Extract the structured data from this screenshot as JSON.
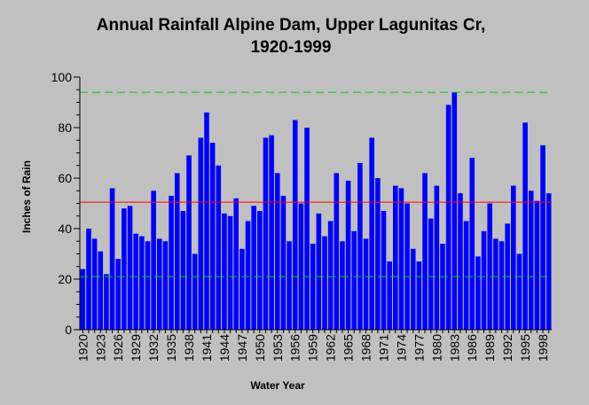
{
  "chart_data": {
    "type": "bar",
    "title_line1": "Annual Rainfall Alpine Dam, Upper Lagunitas Cr,",
    "title_line2": "1920-1999",
    "xlabel": "Water Year",
    "ylabel": "Inches of Rain",
    "ylim": [
      0,
      100
    ],
    "yticks": [
      "0",
      "20",
      "40",
      "60",
      "80",
      "100"
    ],
    "years": [
      1920,
      1921,
      1922,
      1923,
      1924,
      1925,
      1926,
      1927,
      1928,
      1929,
      1930,
      1931,
      1932,
      1933,
      1934,
      1935,
      1936,
      1937,
      1938,
      1939,
      1940,
      1941,
      1942,
      1943,
      1944,
      1945,
      1946,
      1947,
      1948,
      1949,
      1950,
      1951,
      1952,
      1953,
      1954,
      1955,
      1956,
      1957,
      1958,
      1959,
      1960,
      1961,
      1962,
      1963,
      1964,
      1965,
      1966,
      1967,
      1968,
      1969,
      1970,
      1971,
      1972,
      1973,
      1974,
      1975,
      1976,
      1977,
      1978,
      1979,
      1980,
      1981,
      1982,
      1983,
      1984,
      1985,
      1986,
      1987,
      1988,
      1989,
      1990,
      1991,
      1992,
      1993,
      1994,
      1995,
      1996,
      1997,
      1998,
      1999
    ],
    "xtick_labels": [
      "1920",
      "1923",
      "1926",
      "1929",
      "1932",
      "1935",
      "1938",
      "1941",
      "1944",
      "1947",
      "1950",
      "1953",
      "1956",
      "1959",
      "1962",
      "1965",
      "1968",
      "1971",
      "1974",
      "1977",
      "1980",
      "1983",
      "1986",
      "1989",
      "1992",
      "1995",
      "1998"
    ],
    "values": [
      24,
      40,
      36,
      31,
      22,
      56,
      28,
      48,
      49,
      38,
      37,
      35,
      55,
      36,
      35,
      53,
      62,
      47,
      69,
      30,
      76,
      86,
      74,
      65,
      46,
      45,
      52,
      32,
      43,
      49,
      47,
      76,
      77,
      62,
      53,
      35,
      83,
      50,
      80,
      34,
      46,
      37,
      43,
      62,
      35,
      59,
      39,
      66,
      36,
      76,
      60,
      47,
      27,
      57,
      56,
      50,
      32,
      27,
      62,
      44,
      57,
      34,
      89,
      94,
      54,
      43,
      68,
      29,
      39,
      50,
      36,
      35,
      42,
      57,
      30,
      82,
      55,
      51,
      73,
      54
    ],
    "reference_lines": [
      {
        "value": 94,
        "color": "#00cc00",
        "style": "dashed"
      },
      {
        "value": 50.5,
        "color": "#ff0000",
        "style": "solid"
      },
      {
        "value": 21,
        "color": "#00cc00",
        "style": "dashed"
      }
    ],
    "bar_color": "#0000ff",
    "plot_background": "#c0c0c0"
  }
}
